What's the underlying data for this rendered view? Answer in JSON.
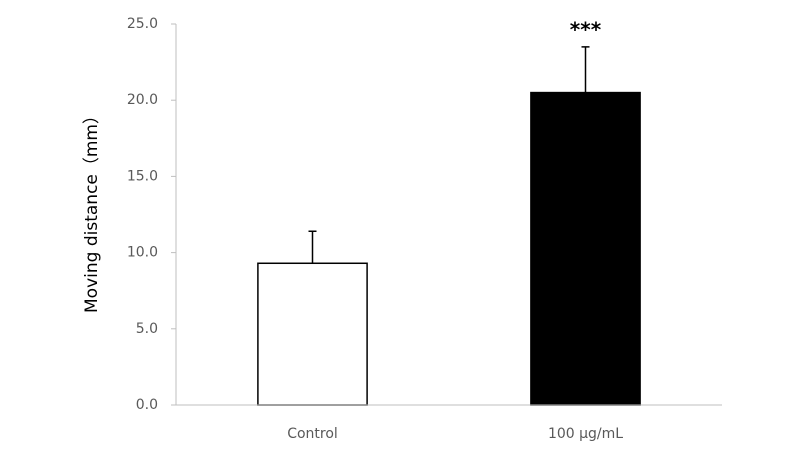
{
  "chart_data": {
    "type": "bar",
    "y_label": "Moving distance（mm）",
    "categories": [
      "Control",
      "100 μg/mL"
    ],
    "values": [
      9.3,
      20.5
    ],
    "errors": [
      2.1,
      3.0
    ],
    "colors": [
      "#ffffff",
      "#000000"
    ],
    "annotations": [
      null,
      "***"
    ],
    "ylim": [
      0,
      25
    ],
    "yticks": [
      {
        "value": 0,
        "label": "0.0"
      },
      {
        "value": 5,
        "label": "5.0"
      },
      {
        "value": 10,
        "label": "10.0"
      },
      {
        "value": 15,
        "label": "15.0"
      },
      {
        "value": 20,
        "label": "20.0"
      },
      {
        "value": 25,
        "label": "25.0"
      }
    ],
    "grid": false
  }
}
